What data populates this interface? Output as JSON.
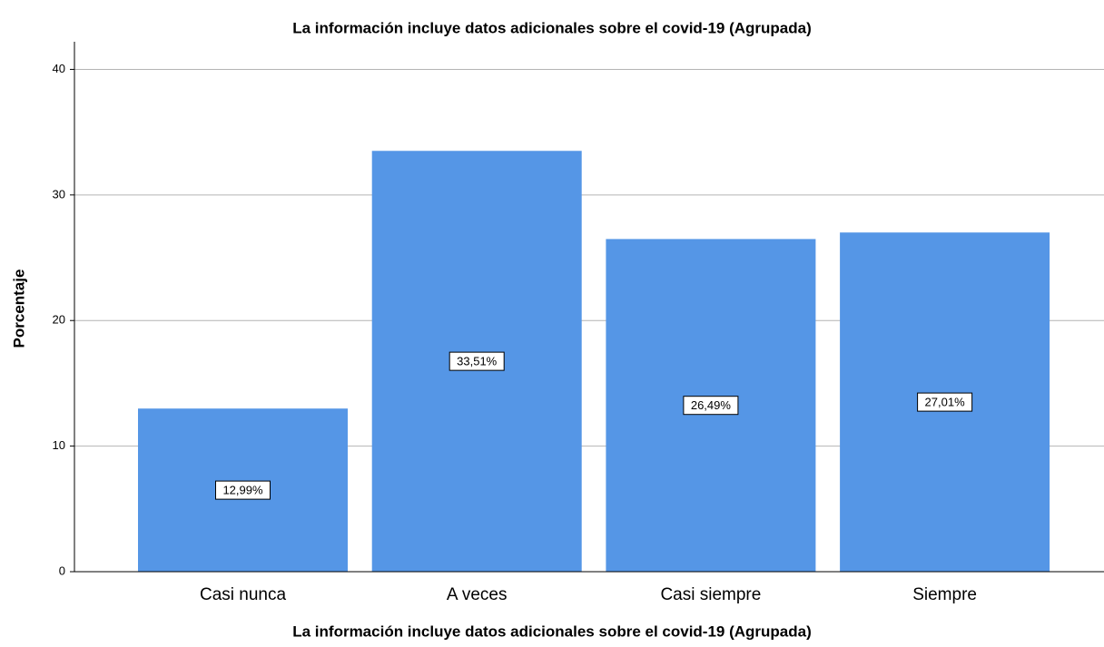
{
  "chart_data": {
    "type": "bar",
    "title": "La información incluye datos adicionales sobre el covid-19  (Agrupada)",
    "x_label": "La información incluye datos adicionales sobre el covid-19  (Agrupada)",
    "y_label": "Porcentaje",
    "categories": [
      "Casi nunca",
      "A veces",
      "Casi siempre",
      "Siempre"
    ],
    "values": [
      12.99,
      33.51,
      26.49,
      27.01
    ],
    "value_labels": [
      "12,99%",
      "33,51%",
      "26,49%",
      "27,01%"
    ],
    "color": "#5596e6",
    "ylim": [
      0,
      42.2
    ],
    "yticks": [
      0,
      10,
      20,
      30,
      40
    ],
    "grid": true
  }
}
